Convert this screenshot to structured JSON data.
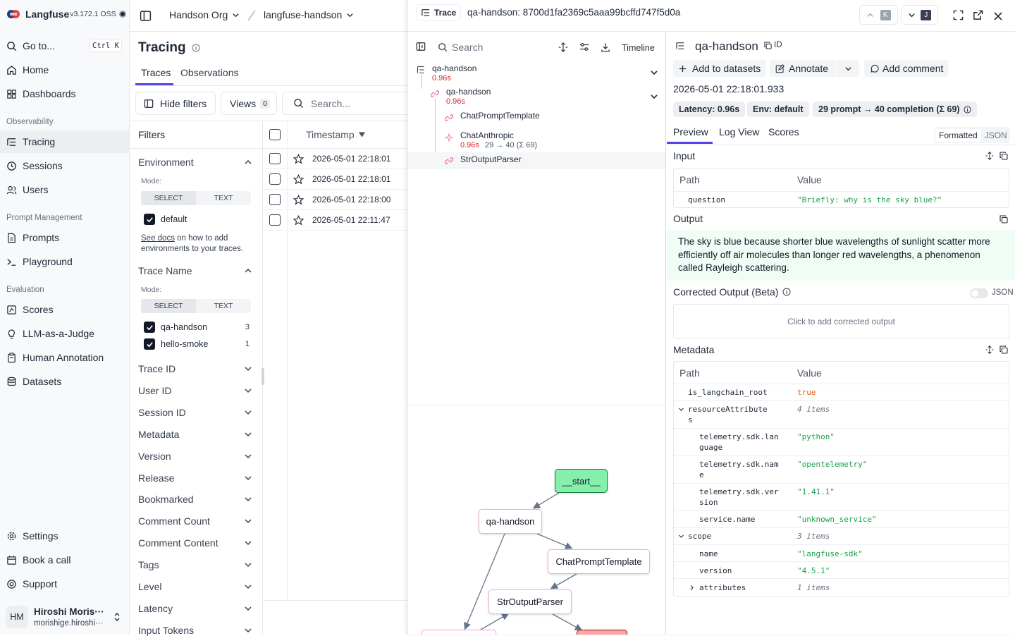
{
  "app": {
    "name": "Langfuse",
    "version": "v3.172.1 OSS"
  },
  "sidebar": {
    "goto": {
      "label": "Go to...",
      "shortcut": "Ctrl K"
    },
    "home": "Home",
    "dashboards": "Dashboards",
    "section_observability": "Observability",
    "tracing": "Tracing",
    "sessions": "Sessions",
    "users": "Users",
    "section_prompt": "Prompt Management",
    "prompts": "Prompts",
    "playground": "Playground",
    "section_eval": "Evaluation",
    "scores": "Scores",
    "llm_judge": "LLM-as-a-Judge",
    "human_annotation": "Human Annotation",
    "datasets": "Datasets",
    "settings": "Settings",
    "book_call": "Book a call",
    "support": "Support",
    "user": {
      "initials": "HM",
      "name": "Hiroshi Moris···",
      "email": "morishige.hiroshi···"
    }
  },
  "header": {
    "org": "Handson Org",
    "project": "langfuse-handson"
  },
  "main": {
    "title": "Tracing",
    "tabs": [
      "Traces",
      "Observations"
    ],
    "hide_filters": "Hide filters",
    "views": "Views",
    "views_count": "0",
    "search_placeholder": "Search...",
    "filters_title": "Filters",
    "column_timestamp": "Timestamp",
    "rows": [
      "2026-05-01 22:18:01",
      "2026-05-01 22:18:01",
      "2026-05-01 22:18:00",
      "2026-05-01 22:11:47"
    ]
  },
  "filters": {
    "environment": "Environment",
    "mode_label": "Mode:",
    "select": "SELECT",
    "text": "TEXT",
    "env_default": "default",
    "see_docs": "See docs",
    "docs_rest": " on how to add environments to your traces.",
    "trace_name": "Trace Name",
    "names": [
      {
        "label": "qa-handson",
        "count": "3"
      },
      {
        "label": "hello-smoke",
        "count": "1"
      }
    ],
    "collapsed": [
      "Trace ID",
      "User ID",
      "Session ID",
      "Metadata",
      "Version",
      "Release",
      "Bookmarked",
      "Comment Count",
      "Comment Content",
      "Tags",
      "Level",
      "Latency",
      "Input Tokens"
    ]
  },
  "trace": {
    "tag": "Trace",
    "id_label": "qa-handson: 8700d1fa2369c5aaa99bcffd747f5d0a",
    "nav_prev_key": "K",
    "nav_next_key": "J",
    "search_placeholder": "Search",
    "timeline": "Timeline",
    "tree": {
      "root": {
        "name": "qa-handson",
        "latency": "0.96s"
      },
      "chain": {
        "name": "qa-handson",
        "latency": "0.96s"
      },
      "prompt_tmpl": "ChatPromptTemplate",
      "llm": {
        "name": "ChatAnthropic",
        "latency": "0.96s",
        "tokens": "29 → 40 (Σ 69)"
      },
      "parser": "StrOutputParser"
    },
    "graph": {
      "start": "__start__",
      "root": "qa-handson",
      "prompt_tmpl": "ChatPromptTemplate",
      "parser": "StrOutputParser"
    }
  },
  "detail": {
    "title": "qa-handson",
    "id_btn": "ID",
    "add_datasets": "Add to datasets",
    "annotate": "Annotate",
    "add_comment": "Add comment",
    "timestamp": "2026-05-01 22:18:01.933",
    "badge_latency": "Latency: 0.96s",
    "badge_env": "Env: default",
    "badge_tokens": "29 prompt → 40 completion (Σ 69)",
    "tabs": [
      "Preview",
      "Log View",
      "Scores"
    ],
    "toggle_formatted": "Formatted",
    "toggle_json": "JSON",
    "input_title": "Input",
    "col_path": "Path",
    "col_value": "Value",
    "input_key": "question",
    "input_value": "\"Briefly: why is the sky blue?\"",
    "output_title": "Output",
    "output_text": "The sky is blue because shorter blue wavelengths of sunlight scatter more efficiently off air molecules than longer red wavelengths, a phenomenon called Rayleigh scattering.",
    "corrected_title": "Corrected Output (Beta)",
    "corrected_json": "JSON",
    "corrected_placeholder": "Click to add corrected output",
    "metadata_title": "Metadata",
    "meta": {
      "is_root_k": "is_langchain_root",
      "is_root_v": "true",
      "res_k1": "resourceAttribute",
      "res_k2": "s",
      "res_v": "4 items",
      "lang_k1": "telemetry.sdk.lan",
      "lang_k2": "guage",
      "lang_v": "\"python\"",
      "name_k1": "telemetry.sdk.nam",
      "name_k2": "e",
      "name_v": "\"opentelemetry\"",
      "ver_k1": "telemetry.sdk.ver",
      "ver_k2": "sion",
      "ver_v": "\"1.41.1\"",
      "svc_k": "service.name",
      "svc_v": "\"unknown_service\"",
      "scope_k": "scope",
      "scope_v": "3 items",
      "sname_k": "name",
      "sname_v": "\"langfuse-sdk\"",
      "sver_k": "version",
      "sver_v": "\"4.5.1\"",
      "attr_k": "attributes",
      "attr_v": "1 items"
    }
  }
}
